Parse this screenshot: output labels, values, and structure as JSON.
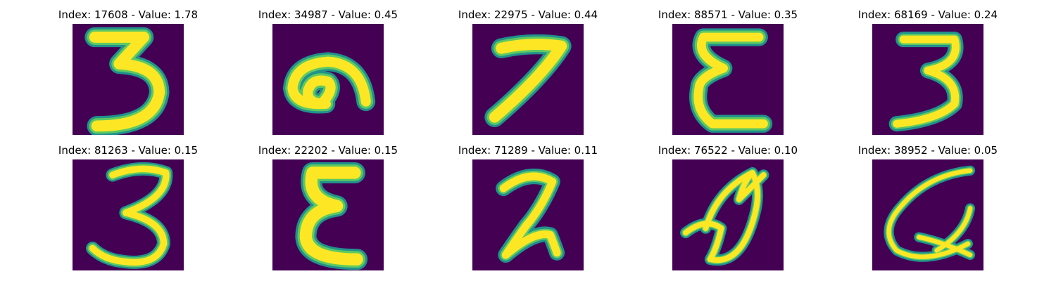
{
  "colors": {
    "background": "#440154",
    "stroke_edge": "#21918c",
    "stroke_mid": "#5ec962",
    "stroke_core": "#fde725"
  },
  "items": [
    {
      "title": "Index: 17608 - Value: 1.78",
      "glyph": "3-flat-top"
    },
    {
      "title": "Index: 34987 - Value: 0.45",
      "glyph": "hook-arc"
    },
    {
      "title": "Index: 22975 - Value: 0.44",
      "glyph": "7"
    },
    {
      "title": "Index: 88571 - Value: 0.35",
      "glyph": "epsilon"
    },
    {
      "title": "Index: 68169 - Value: 0.24",
      "glyph": "3"
    },
    {
      "title": "Index: 81263 - Value: 0.15",
      "glyph": "3-script"
    },
    {
      "title": "Index: 22202 - Value: 0.15",
      "glyph": "epsilon-bold"
    },
    {
      "title": "Index: 71289 - Value: 0.11",
      "glyph": "2"
    },
    {
      "title": "Index: 76522 - Value: 0.10",
      "glyph": "loop-scribble"
    },
    {
      "title": "Index: 38952 - Value: 0.05",
      "glyph": "G-cross"
    }
  ]
}
